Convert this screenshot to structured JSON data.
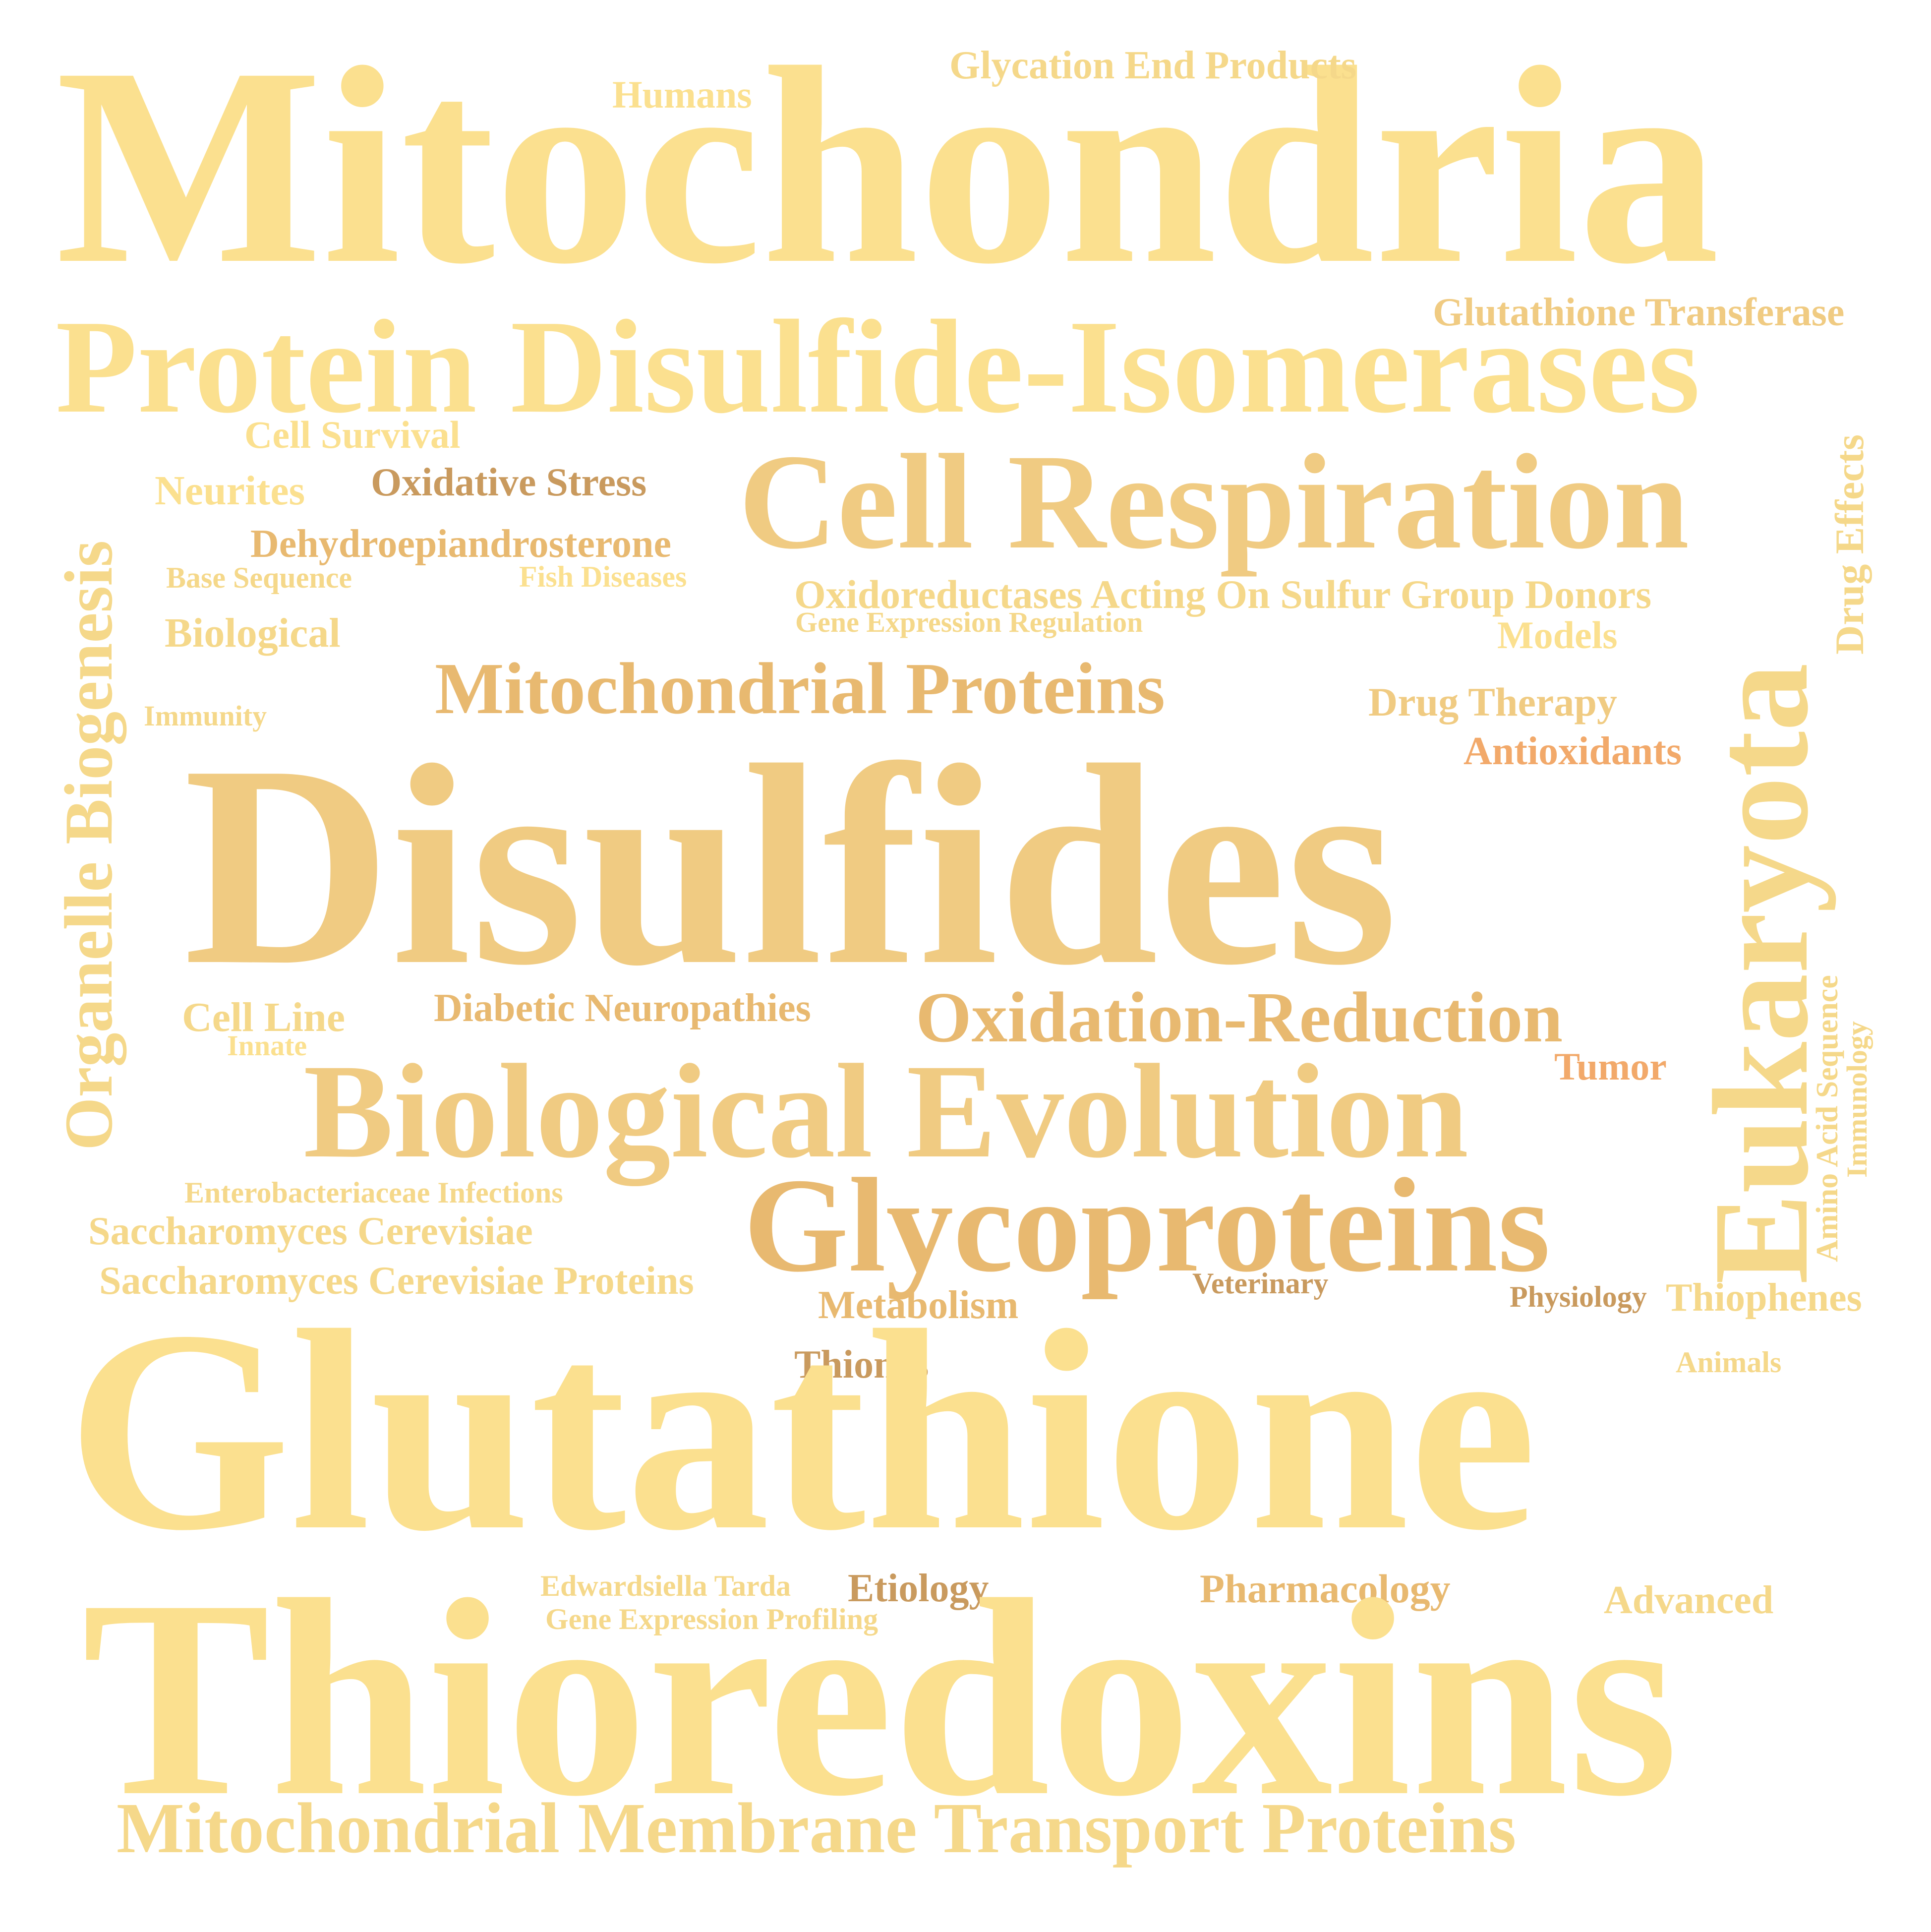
{
  "colors": {
    "pale_yellow": "#fbe08f",
    "light_gold": "#f5d88a",
    "gold": "#f0cb82",
    "tan": "#e8b970",
    "brown": "#c99a5e",
    "orange": "#f2a96a"
  },
  "words": [
    {
      "text": "Mitochondria"
    },
    {
      "text": "Glycation End Products"
    },
    {
      "text": "Humans"
    },
    {
      "text": "Glutathione Transferase"
    },
    {
      "text": "Protein Disulfide-Isomerases"
    },
    {
      "text": "Cell Survival"
    },
    {
      "text": "Drug Effects"
    },
    {
      "text": "Neurites"
    },
    {
      "text": "Oxidative Stress"
    },
    {
      "text": "Cell Respiration"
    },
    {
      "text": "Dehydroepiandrosterone"
    },
    {
      "text": "Base Sequence"
    },
    {
      "text": "Fish Diseases"
    },
    {
      "text": "Oxidoreductases Acting On Sulfur Group Donors"
    },
    {
      "text": "Gene Expression Regulation"
    },
    {
      "text": "Biological"
    },
    {
      "text": "Models"
    },
    {
      "text": "Organelle Biogenesis"
    },
    {
      "text": "Mitochondrial Proteins"
    },
    {
      "text": "Drug Therapy"
    },
    {
      "text": "Immunity"
    },
    {
      "text": "Antioxidants"
    },
    {
      "text": "Eukaryota"
    },
    {
      "text": "Disulfides"
    },
    {
      "text": "Cell Line"
    },
    {
      "text": "Diabetic Neuropathies"
    },
    {
      "text": "Oxidation-Reduction"
    },
    {
      "text": "Amino Acid Sequence"
    },
    {
      "text": "Immunology"
    },
    {
      "text": "Innate"
    },
    {
      "text": "Tumor"
    },
    {
      "text": "Biological Evolution"
    },
    {
      "text": "Enterobacteriaceae Infections"
    },
    {
      "text": "Glycoproteins"
    },
    {
      "text": "Saccharomyces Cerevisiae"
    },
    {
      "text": "Saccharomyces Cerevisiae Proteins"
    },
    {
      "text": "Veterinary"
    },
    {
      "text": "Physiology"
    },
    {
      "text": "Thiophenes"
    },
    {
      "text": "Metabolism"
    },
    {
      "text": "Thiones"
    },
    {
      "text": "Animals"
    },
    {
      "text": "Glutathione"
    },
    {
      "text": "Edwardsiella Tarda"
    },
    {
      "text": "Etiology"
    },
    {
      "text": "Pharmacology"
    },
    {
      "text": "Gene Expression Profiling"
    },
    {
      "text": "Advanced"
    },
    {
      "text": "Thioredoxins"
    },
    {
      "text": "Mitochondrial Membrane Transport Proteins"
    }
  ]
}
